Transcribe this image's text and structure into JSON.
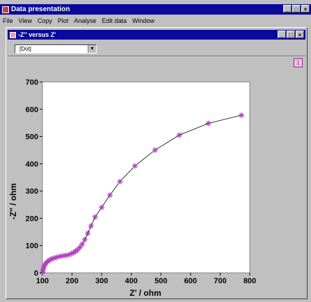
{
  "app": {
    "title": "Data presentation",
    "window_buttons": {
      "minimize": "_",
      "maximize": "□",
      "close": "×"
    }
  },
  "menu": [
    "File",
    "View",
    "Copy",
    "Plot",
    "Analyse",
    "Edit data",
    "Window"
  ],
  "document": {
    "title": "-Z'' versus Z'",
    "window_buttons": {
      "minimize": "_",
      "maximize": "□",
      "close": "×"
    },
    "select_value": "[Dot]",
    "page_indicator": "1"
  },
  "chart_data": {
    "type": "scatter",
    "xlabel": "Z' / ohm",
    "ylabel": "-Z'' / ohm",
    "xlim": [
      100,
      800
    ],
    "ylim": [
      0,
      700
    ],
    "xticks": [
      100,
      200,
      300,
      400,
      500,
      600,
      700,
      800
    ],
    "yticks": [
      0,
      100,
      200,
      300,
      400,
      500,
      600,
      700
    ],
    "marker": "asterisk",
    "marker_color": "#b040c0",
    "line_color": "#000000",
    "points": [
      [
        101,
        3
      ],
      [
        102,
        10
      ],
      [
        104,
        18
      ],
      [
        106,
        25
      ],
      [
        109,
        31
      ],
      [
        113,
        37
      ],
      [
        118,
        42
      ],
      [
        124,
        47
      ],
      [
        131,
        51
      ],
      [
        139,
        54
      ],
      [
        148,
        57
      ],
      [
        158,
        60
      ],
      [
        168,
        62
      ],
      [
        178,
        64
      ],
      [
        188,
        66
      ],
      [
        197,
        70
      ],
      [
        205,
        74
      ],
      [
        212,
        79
      ],
      [
        219,
        85
      ],
      [
        226,
        93
      ],
      [
        234,
        105
      ],
      [
        243,
        122
      ],
      [
        253,
        145
      ],
      [
        264,
        172
      ],
      [
        278,
        205
      ],
      [
        300,
        240
      ],
      [
        328,
        285
      ],
      [
        362,
        335
      ],
      [
        412,
        392
      ],
      [
        480,
        450
      ],
      [
        562,
        505
      ],
      [
        660,
        548
      ],
      [
        772,
        578
      ]
    ]
  }
}
